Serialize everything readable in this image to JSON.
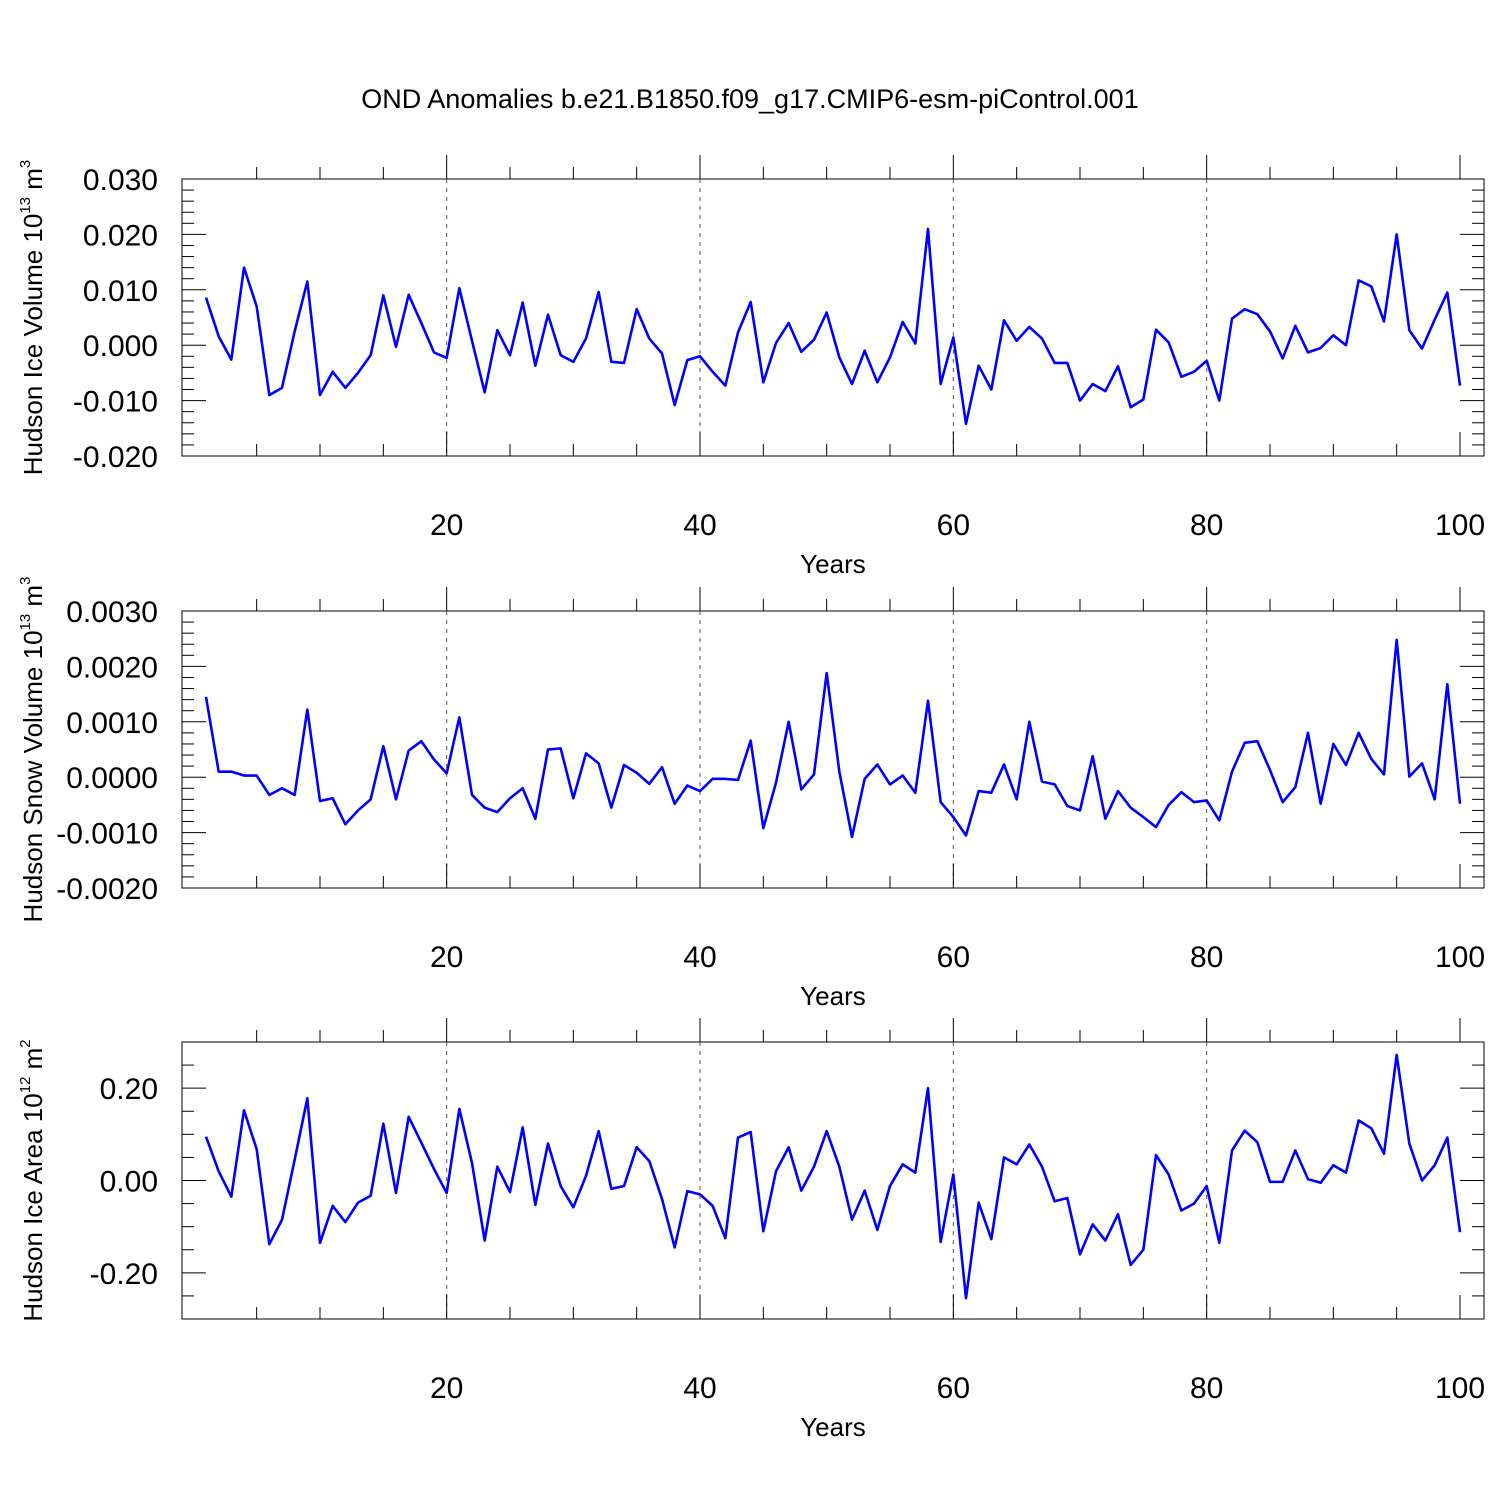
{
  "figure": {
    "title": "OND Anomalies b.e21.B1850.f09_g17.CMIP6-esm-piControl.001",
    "line_color": "#0000ff",
    "grid_color": "#555555"
  },
  "chart_data": [
    {
      "type": "line",
      "name": "ice-volume",
      "ylabel_main": "Hudson Ice Volume 10",
      "ylabel_sup": "13",
      "ylabel_unit": " m",
      "ylabel_unit_sup": "3",
      "xlabel": "Years",
      "xlim": [
        1,
        100
      ],
      "ylim": [
        -0.02,
        0.03
      ],
      "x_ticks": [
        20,
        40,
        60,
        80,
        100
      ],
      "x_tick_labels": [
        "20",
        "40",
        "60",
        "80",
        "100"
      ],
      "y_ticks": [
        -0.02,
        -0.01,
        0.0,
        0.01,
        0.02,
        0.03
      ],
      "y_tick_labels": [
        "-0.020",
        "-0.010",
        "0.000",
        "0.010",
        "0.020",
        "0.030"
      ],
      "y_minor_step": 0.002,
      "grid_x": [
        20,
        40,
        60,
        80
      ],
      "values": [
        0.0086,
        0.0016,
        -0.0026,
        0.014,
        0.007,
        -0.009,
        -0.0077,
        0.0025,
        0.0115,
        -0.009,
        -0.0048,
        -0.0077,
        -0.005,
        -0.0018,
        0.009,
        -0.0003,
        0.0091,
        0.004,
        -0.0013,
        -0.0023,
        0.0103,
        0.0008,
        -0.0085,
        0.0027,
        -0.0018,
        0.0077,
        -0.0037,
        0.0055,
        -0.0018,
        -0.003,
        0.0012,
        0.0096,
        -0.003,
        -0.0032,
        0.0065,
        0.0012,
        -0.0015,
        -0.0108,
        -0.0027,
        -0.002,
        -0.0048,
        -0.0073,
        0.0023,
        0.0078,
        -0.0067,
        0.0004,
        0.004,
        -0.0012,
        0.001,
        0.0059,
        -0.0022,
        -0.007,
        -0.001,
        -0.0067,
        -0.0022,
        0.0042,
        0.0003,
        0.021,
        -0.007,
        0.0014,
        -0.0142,
        -0.0037,
        -0.008,
        0.0045,
        0.0008,
        0.0033,
        0.0012,
        -0.0032,
        -0.0032,
        -0.01,
        -0.007,
        -0.0083,
        -0.0038,
        -0.0112,
        -0.0098,
        0.0028,
        0.0005,
        -0.0057,
        -0.0048,
        -0.0028,
        -0.01,
        0.0048,
        0.0065,
        0.0056,
        0.0025,
        -0.0024,
        0.0035,
        -0.0013,
        -0.0005,
        0.0018,
        0.0,
        0.0117,
        0.0106,
        0.0043,
        0.02,
        0.0027,
        -0.0006,
        0.0046,
        0.0095,
        -0.0073
      ]
    },
    {
      "type": "line",
      "name": "snow-volume",
      "ylabel_main": "Hudson Snow Volume 10",
      "ylabel_sup": "13",
      "ylabel_unit": " m",
      "ylabel_unit_sup": "3",
      "xlabel": "Years",
      "xlim": [
        1,
        100
      ],
      "ylim": [
        -0.002,
        0.003
      ],
      "x_ticks": [
        20,
        40,
        60,
        80,
        100
      ],
      "x_tick_labels": [
        "20",
        "40",
        "60",
        "80",
        "100"
      ],
      "y_ticks": [
        -0.002,
        -0.001,
        0.0,
        0.001,
        0.002,
        0.003
      ],
      "y_tick_labels": [
        "-0.0020",
        "-0.0010",
        "0.0000",
        "0.0010",
        "0.0020",
        "0.0030"
      ],
      "y_minor_step": 0.0002,
      "grid_x": [
        20,
        40,
        60,
        80
      ],
      "values": [
        0.00145,
        0.0001,
        0.0001,
        3e-05,
        3e-05,
        -0.00032,
        -0.0002,
        -0.00032,
        0.00122,
        -0.00043,
        -0.00038,
        -0.00085,
        -0.0006,
        -0.0004,
        0.00056,
        -0.0004,
        0.00048,
        0.00065,
        0.00032,
        7e-05,
        0.00108,
        -0.00032,
        -0.00055,
        -0.00063,
        -0.00038,
        -0.0002,
        -0.00075,
        0.0005,
        0.00052,
        -0.00038,
        0.00043,
        0.00025,
        -0.00055,
        0.00022,
        8e-05,
        -0.00012,
        0.00018,
        -0.00048,
        -0.00015,
        -0.00025,
        -3e-05,
        -3e-05,
        -5e-05,
        0.00066,
        -0.00092,
        -0.0001,
        0.001,
        -0.00022,
        5e-05,
        0.00188,
        0.0001,
        -0.00108,
        -3e-05,
        0.00023,
        -0.00013,
        3e-05,
        -0.00028,
        0.00138,
        -0.00045,
        -0.00072,
        -0.00105,
        -0.00025,
        -0.00028,
        0.00023,
        -0.0004,
        0.001,
        -8e-05,
        -0.00013,
        -0.00052,
        -0.0006,
        0.00038,
        -0.00075,
        -0.00025,
        -0.00055,
        -0.00072,
        -0.0009,
        -0.0005,
        -0.00027,
        -0.00045,
        -0.00042,
        -0.00078,
        0.0001,
        0.00062,
        0.00065,
        0.00013,
        -0.00045,
        -0.00018,
        0.0008,
        -0.00048,
        0.0006,
        0.00022,
        0.0008,
        0.00033,
        5e-05,
        0.00248,
        1e-05,
        0.00025,
        -0.0004,
        0.00168,
        -0.00048
      ]
    },
    {
      "type": "line",
      "name": "ice-area",
      "ylabel_main": "Hudson Ice Area 10",
      "ylabel_sup": "12",
      "ylabel_unit": " m",
      "ylabel_unit_sup": "2",
      "xlabel": "Years",
      "xlim": [
        1,
        100
      ],
      "ylim": [
        -0.3,
        0.3
      ],
      "x_ticks": [
        20,
        40,
        60,
        80,
        100
      ],
      "x_tick_labels": [
        "20",
        "40",
        "60",
        "80",
        "100"
      ],
      "y_ticks": [
        -0.2,
        0.0,
        0.2
      ],
      "y_tick_labels": [
        "-0.20",
        "0.00",
        "0.20"
      ],
      "y_minor_step": 0.05,
      "grid_x": [
        20,
        40,
        60,
        80
      ],
      "values": [
        0.095,
        0.02,
        -0.035,
        0.152,
        0.068,
        -0.138,
        -0.085,
        0.045,
        0.178,
        -0.135,
        -0.055,
        -0.09,
        -0.048,
        -0.033,
        0.123,
        -0.027,
        0.138,
        0.082,
        0.025,
        -0.027,
        0.155,
        0.038,
        -0.13,
        0.03,
        -0.025,
        0.115,
        -0.053,
        0.08,
        -0.012,
        -0.058,
        0.01,
        0.107,
        -0.018,
        -0.012,
        0.072,
        0.042,
        -0.04,
        -0.145,
        -0.023,
        -0.03,
        -0.055,
        -0.125,
        0.093,
        0.105,
        -0.11,
        0.02,
        0.072,
        -0.022,
        0.03,
        0.107,
        0.03,
        -0.085,
        -0.022,
        -0.107,
        -0.012,
        0.035,
        0.017,
        0.2,
        -0.133,
        0.013,
        -0.255,
        -0.048,
        -0.127,
        0.05,
        0.035,
        0.078,
        0.03,
        -0.045,
        -0.038,
        -0.16,
        -0.095,
        -0.13,
        -0.073,
        -0.183,
        -0.15,
        0.055,
        0.013,
        -0.065,
        -0.05,
        -0.012,
        -0.135,
        0.065,
        0.108,
        0.083,
        -0.003,
        -0.003,
        0.065,
        0.003,
        -0.005,
        0.033,
        0.017,
        0.13,
        0.113,
        0.058,
        0.272,
        0.08,
        0.0,
        0.033,
        0.093,
        -0.112
      ]
    }
  ]
}
